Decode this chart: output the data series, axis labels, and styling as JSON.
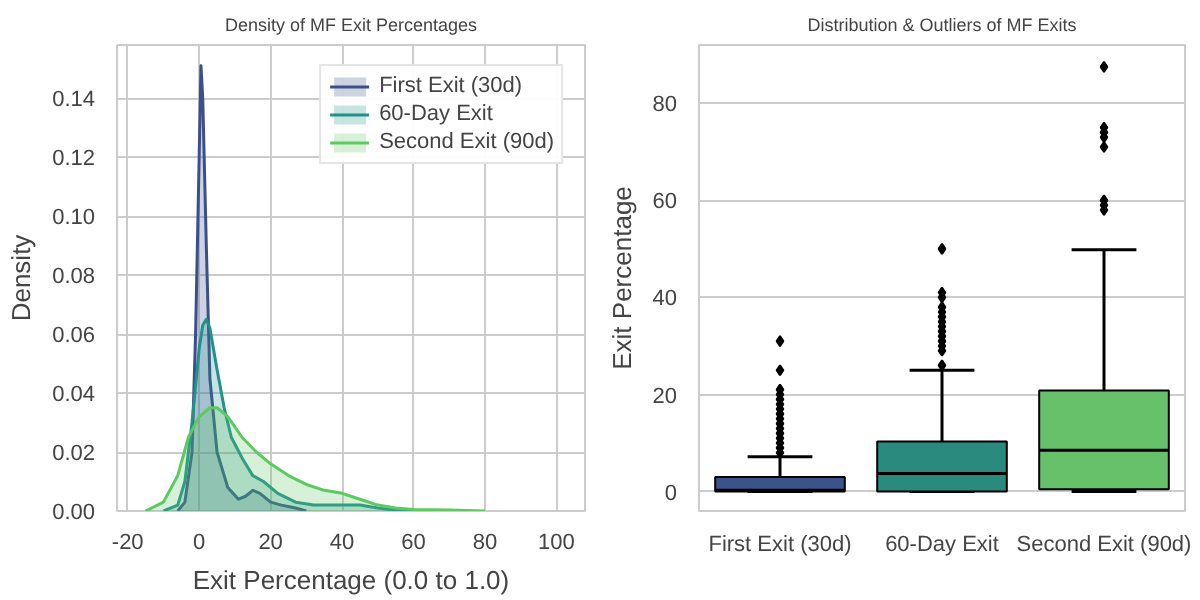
{
  "chart_data": [
    {
      "type": "area",
      "title": "Density of MF Exit Percentages",
      "xlabel": "Exit Percentage (0.0 to 1.0)",
      "ylabel": "Density",
      "xlim": [
        -23,
        108
      ],
      "ylim": [
        0,
        0.158
      ],
      "xticks": [
        -20,
        0,
        20,
        40,
        60,
        80,
        100
      ],
      "yticks": [
        {
          "value": 0,
          "label": "0.00"
        },
        {
          "value": 0.02,
          "label": "0.02"
        },
        {
          "value": 0.04,
          "label": "0.04"
        },
        {
          "value": 0.06,
          "label": "0.06"
        },
        {
          "value": 0.08,
          "label": "0.08"
        },
        {
          "value": 0.1,
          "label": "0.10"
        },
        {
          "value": 0.12,
          "label": "0.12"
        },
        {
          "value": 0.14,
          "label": "0.14"
        }
      ],
      "grid": true,
      "legend": "top right",
      "series": [
        {
          "name": "First Exit (30d)",
          "color": "#3b4f8a",
          "x": [
            -6,
            -4,
            -2,
            -1,
            0,
            0.5,
            1,
            2,
            3,
            5,
            8,
            11,
            13,
            15,
            17,
            20,
            23,
            27,
            30
          ],
          "values": [
            0,
            0.003,
            0.02,
            0.06,
            0.12,
            0.151,
            0.14,
            0.09,
            0.045,
            0.02,
            0.008,
            0.004,
            0.005,
            0.007,
            0.006,
            0.003,
            0.002,
            0.001,
            0
          ]
        },
        {
          "name": "60-Day Exit",
          "color": "#21918c",
          "x": [
            -10,
            -6,
            -4,
            -2,
            0,
            1,
            2,
            3,
            5,
            7,
            9,
            12,
            15,
            18,
            22,
            27,
            32,
            38,
            45,
            50,
            55,
            60
          ],
          "values": [
            0,
            0.002,
            0.01,
            0.03,
            0.055,
            0.063,
            0.065,
            0.062,
            0.048,
            0.035,
            0.025,
            0.018,
            0.012,
            0.01,
            0.006,
            0.003,
            0.002,
            0.002,
            0.002,
            0.001,
            0.0003,
            0
          ]
        },
        {
          "name": "Second Exit (90d)",
          "color": "#5ec962",
          "x": [
            -15,
            -10,
            -6,
            -3,
            0,
            3,
            5,
            8,
            12,
            16,
            20,
            25,
            30,
            35,
            40,
            45,
            50,
            55,
            60,
            70,
            75,
            80
          ],
          "values": [
            0,
            0.003,
            0.012,
            0.025,
            0.032,
            0.035,
            0.035,
            0.032,
            0.025,
            0.02,
            0.016,
            0.012,
            0.009,
            0.007,
            0.006,
            0.004,
            0.002,
            0.001,
            0.0005,
            0.0003,
            0.0002,
            0
          ]
        }
      ]
    },
    {
      "type": "box",
      "title": "Distribution & Outliers of MF Exits",
      "ylabel": "Exit Percentage",
      "categories": [
        "First Exit (30d)",
        "60-Day Exit",
        "Second Exit (90d)"
      ],
      "colors": [
        "#3b528b",
        "#2a8a7e",
        "#66c16a"
      ],
      "ylim": [
        -4,
        92
      ],
      "yticks": [
        0,
        20,
        40,
        60,
        80
      ],
      "grid": "y",
      "boxes": [
        {
          "low": 0,
          "q1": 0,
          "median": 0.3,
          "q3": 3,
          "high": 7.2,
          "outliers": [
            8,
            9,
            10,
            11,
            12,
            13,
            14,
            15,
            16,
            17,
            18,
            19,
            20,
            21,
            25,
            31
          ]
        },
        {
          "low": 0,
          "q1": 0,
          "median": 3.7,
          "q3": 10.3,
          "high": 25,
          "outliers": [
            26,
            29,
            30,
            31,
            32,
            33,
            34,
            35,
            36,
            37,
            38,
            40,
            41,
            50
          ]
        },
        {
          "low": 0,
          "q1": 0.5,
          "median": 8.5,
          "q3": 20.8,
          "high": 49.8,
          "outliers": [
            58,
            59,
            60,
            71,
            73,
            74,
            75,
            87.5
          ]
        }
      ]
    }
  ]
}
